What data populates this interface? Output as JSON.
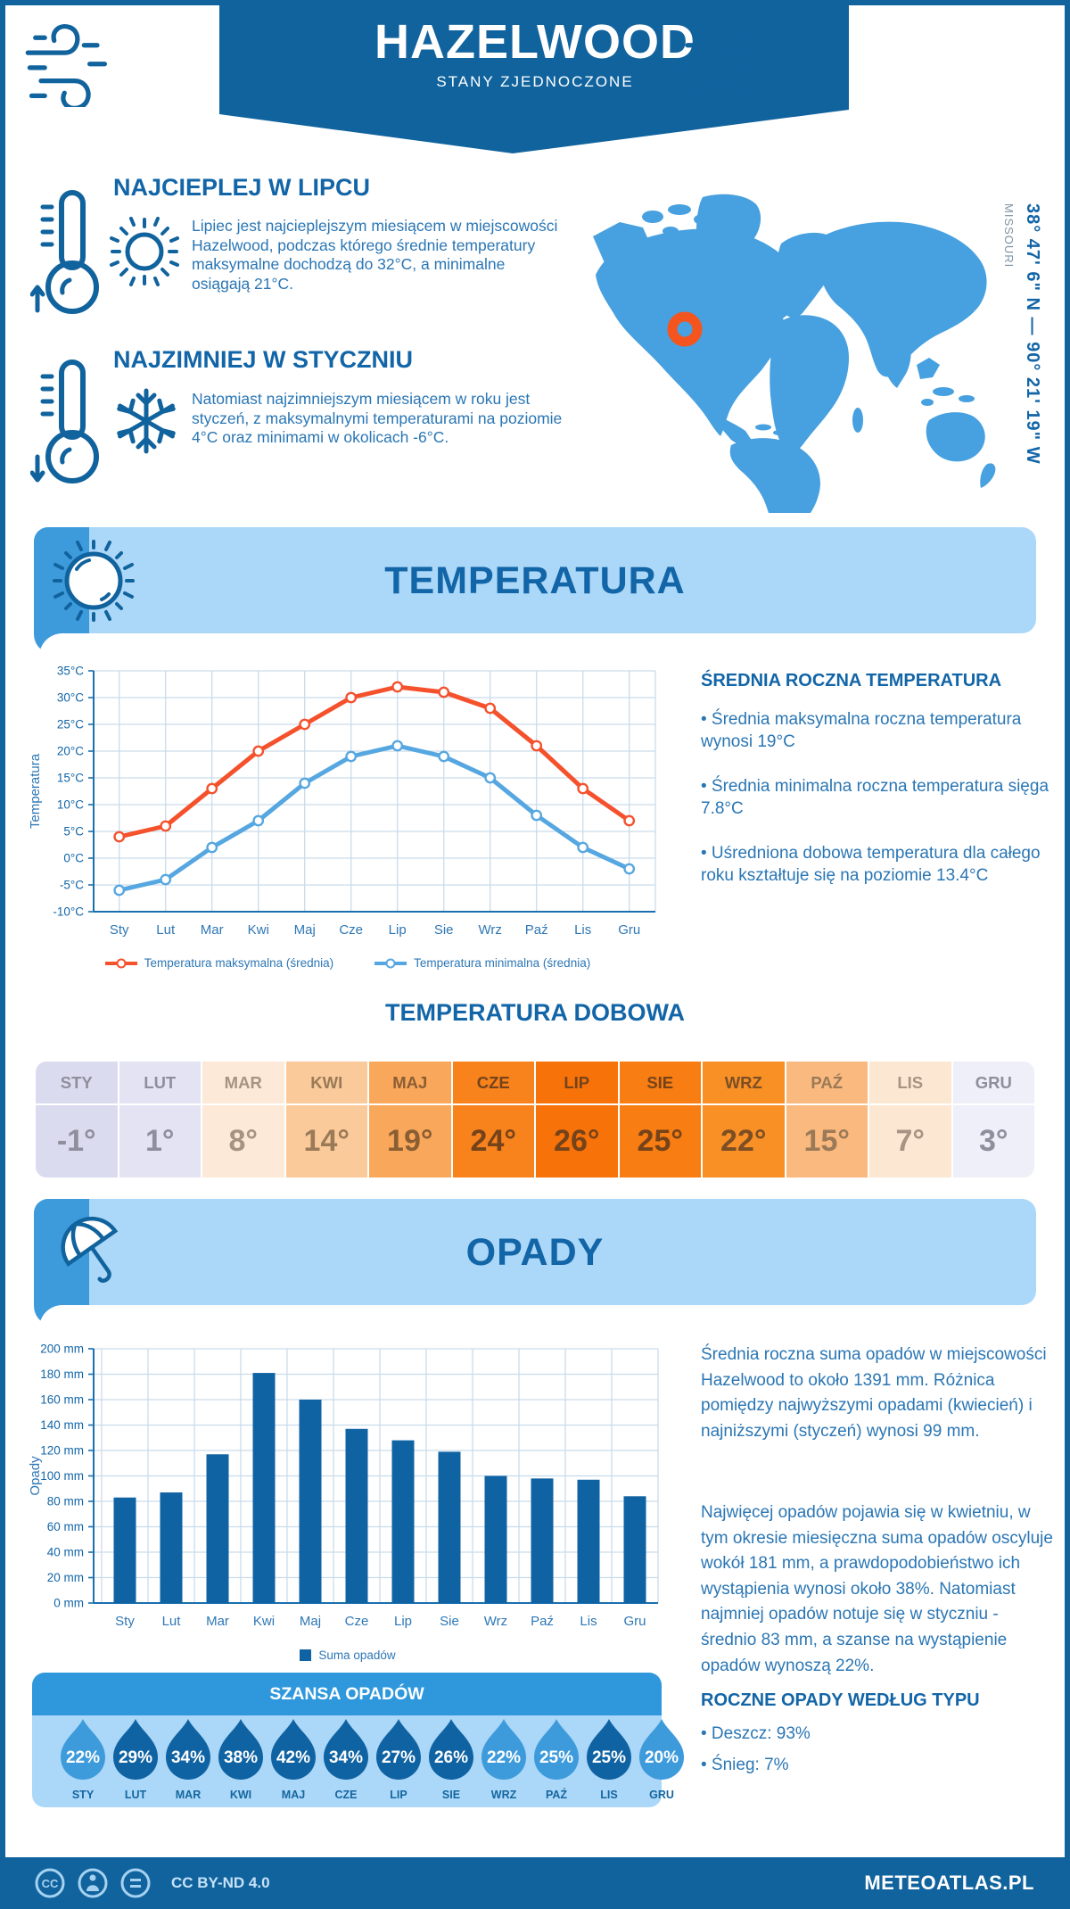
{
  "header": {
    "title": "HAZELWOOD",
    "subtitle": "STANY ZJEDNOCZONE"
  },
  "location": {
    "coordinates": "38° 47' 6\" N — 90° 21' 19\" W",
    "region": "MISSOURI"
  },
  "highlights": [
    {
      "title": "NAJCIEPLEJ W LIPCU",
      "text": "Lipiec jest najcieplejszym miesiącem w miejscowości Hazelwood, podczas którego średnie temperatury maksymalne dochodzą do 32°C, a minimalne osiągają 21°C."
    },
    {
      "title": "NAJZIMNIEJ W STYCZNIU",
      "text": "Natomiast najzimniejszym miesiącem w roku jest styczeń, z maksymalnymi temperaturami na poziomie 4°C oraz minimami w okolicach -6°C."
    }
  ],
  "sections": {
    "temperature_title": "TEMPERATURA",
    "precipitation_title": "OPADY",
    "daily_table_title": "TEMPERATURA DOBOWA",
    "chance_title": "SZANSA OPADÓW",
    "annual_type_title": "ROCZNE OPADY WEDŁUG TYPU"
  },
  "temperature_summary": {
    "title": "ŚREDNIA ROCZNA TEMPERATURA",
    "items": [
      "• Średnia maksymalna roczna temperatura wynosi 19°C",
      "• Średnia minimalna roczna temperatura sięga 7.8°C",
      "• Uśredniona dobowa temperatura dla całego roku kształtuje się na poziomie 13.4°C"
    ]
  },
  "precipitation_text": {
    "par1": "Średnia roczna suma opadów w miejscowości Hazelwood to około 1391 mm. Różnica pomiędzy najwyższymi opadami (kwiecień) i najniższymi (styczeń) wynosi 99 mm.",
    "par2": "Najwięcej opadów pojawia się w kwietniu, w tym okresie miesięczna suma opadów oscyluje wokół 181 mm, a prawdopodobieństwo ich wystąpienia wynosi około 38%. Natomiast najmniej opadów notuje się w styczniu - średnio 83 mm, a szanse na wystąpienie opadów wynoszą 22%."
  },
  "annual_precip_type": {
    "title": "ROCZNE OPADY WEDŁUG TYPU",
    "items": [
      "• Deszcz: 93%",
      "• Śnieg: 7%"
    ]
  },
  "footer": {
    "license": "CC BY-ND 4.0",
    "brand": "METEOATLAS.PL"
  },
  "colors": {
    "dark_blue": "#11639E",
    "medium_blue": "#3D9BDC",
    "light_blue": "#ABD7F8",
    "map_blue": "#47A0DF",
    "marker_orange": "#F4551F",
    "series_orange": "#F4512C",
    "series_blue": "#56A7E1",
    "bar_blue": "#1063A3"
  },
  "chart_data": [
    {
      "id": "monthly-temperature",
      "type": "line",
      "categories": [
        "Sty",
        "Lut",
        "Mar",
        "Kwi",
        "Maj",
        "Cze",
        "Lip",
        "Sie",
        "Wrz",
        "Paź",
        "Lis",
        "Gru"
      ],
      "ylabel": "Temperatura",
      "ylim": [
        -10,
        35
      ],
      "ytick_step": 5,
      "ytick_suffix": "°C",
      "grid": true,
      "legend_position": "bottom",
      "series": [
        {
          "name": "Temperatura maksymalna (średnia)",
          "color": "#F4512C",
          "values": [
            4,
            6,
            13,
            20,
            25,
            30,
            32,
            31,
            28,
            21,
            13,
            7
          ]
        },
        {
          "name": "Temperatura minimalna (średnia)",
          "color": "#56A7E1",
          "values": [
            -6,
            -4,
            2,
            7,
            14,
            19,
            21,
            19,
            15,
            8,
            2,
            -2
          ]
        }
      ]
    },
    {
      "id": "monthly-precipitation",
      "type": "bar",
      "categories": [
        "Sty",
        "Lut",
        "Mar",
        "Kwi",
        "Maj",
        "Cze",
        "Lip",
        "Sie",
        "Wrz",
        "Paź",
        "Lis",
        "Gru"
      ],
      "ylabel": "Opady",
      "ylim": [
        0,
        200
      ],
      "ytick_step": 20,
      "ytick_suffix": " mm",
      "grid": true,
      "legend_position": "bottom",
      "series": [
        {
          "name": "Suma opadów",
          "color": "#1063A3",
          "values": [
            83,
            87,
            117,
            181,
            160,
            137,
            128,
            119,
            100,
            98,
            97,
            84
          ]
        }
      ]
    },
    {
      "id": "daily-temperature",
      "type": "table",
      "title": "TEMPERATURA DOBOWA",
      "categories": [
        "STY",
        "LUT",
        "MAR",
        "KWI",
        "MAJ",
        "CZE",
        "LIP",
        "SIE",
        "WRZ",
        "PAŹ",
        "LIS",
        "GRU"
      ],
      "values": [
        "-1°",
        "1°",
        "8°",
        "14°",
        "19°",
        "24°",
        "26°",
        "25°",
        "22°",
        "15°",
        "7°",
        "3°"
      ],
      "cell_colors": [
        "#DBDBEF",
        "#E3E3F4",
        "#FCE9D7",
        "#FACA9B",
        "#F9A75B",
        "#F8821C",
        "#F8720A",
        "#F87D13",
        "#F89026",
        "#FAB97E",
        "#FCE8D2",
        "#EFEFF9"
      ],
      "text_colors": [
        "#8E8E9C",
        "#8E8E9C",
        "#A89383",
        "#9A7A57",
        "#8A5E33",
        "#74431A",
        "#74431A",
        "#74431A",
        "#7C4E24",
        "#9A7A57",
        "#A89383",
        "#8E8E9C"
      ]
    },
    {
      "id": "precipitation-chance",
      "type": "droplets",
      "title": "SZANSA OPADÓW",
      "categories": [
        "STY",
        "LUT",
        "MAR",
        "KWI",
        "MAJ",
        "CZE",
        "LIP",
        "SIE",
        "WRZ",
        "PAŹ",
        "LIS",
        "GRU"
      ],
      "values": [
        "22%",
        "29%",
        "34%",
        "38%",
        "42%",
        "34%",
        "27%",
        "26%",
        "22%",
        "25%",
        "25%",
        "20%"
      ],
      "dark": [
        false,
        true,
        true,
        true,
        true,
        true,
        true,
        true,
        false,
        false,
        true,
        false
      ],
      "dark_color": "#1063A3",
      "light_color": "#3E9BDB"
    }
  ]
}
